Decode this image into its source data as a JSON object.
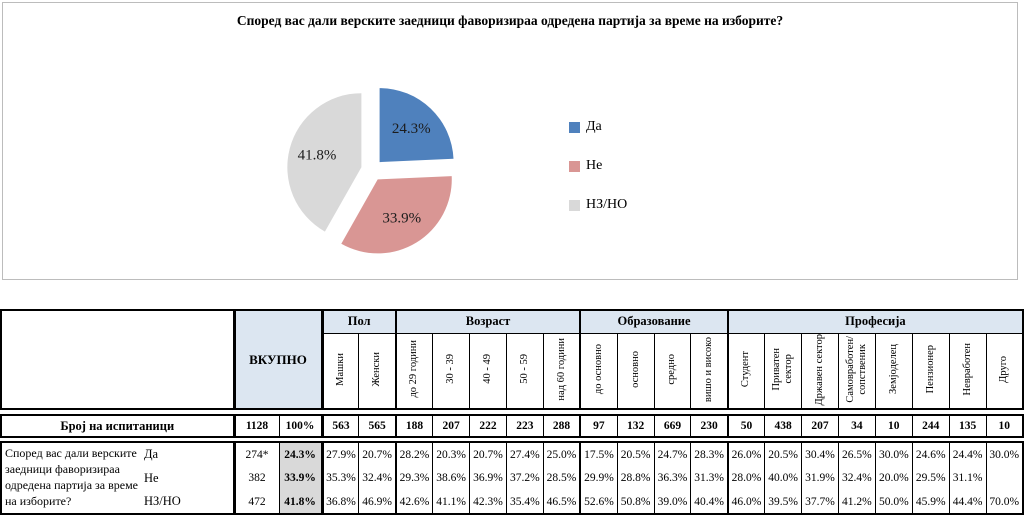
{
  "chart_data": {
    "type": "pie",
    "title": "Според вас дали верските заедници фаворизираа одредена партија за време на изборите?",
    "labels": [
      "Да",
      "Не",
      "НЗ/НО"
    ],
    "values": [
      24.3,
      33.9,
      41.8
    ],
    "value_labels": [
      "24.3%",
      "33.9%",
      "41.8%"
    ],
    "colors": [
      "#4F81BD",
      "#D99694",
      "#D9D9D9"
    ],
    "legend_position": "right",
    "exploded": true,
    "start_angle_deg": -90,
    "direction": "clockwise"
  },
  "table": {
    "corner_label": "",
    "total_header": "ВКУПНО",
    "groups": [
      {
        "label": "Пол",
        "cols": [
          "Машки",
          "Женски"
        ]
      },
      {
        "label": "Возраст",
        "cols": [
          "до 29 години",
          "30 - 39",
          "40 - 49",
          "50 - 59",
          "над 60 години"
        ]
      },
      {
        "label": "Образование",
        "cols": [
          "до основно",
          "основно",
          "средно",
          "вишо и високо"
        ]
      },
      {
        "label": "Професија",
        "cols": [
          "Студент",
          "Приватен\nсектор",
          "Државен сектор",
          "Самовработен/\nсопственик",
          "Земјоделец",
          "Пензионер",
          "Невработен",
          "Друго"
        ]
      }
    ],
    "respondents_row": {
      "label": "Број на испитаници",
      "count": "1128",
      "pct": "100%",
      "values": [
        "563",
        "565",
        "188",
        "207",
        "222",
        "223",
        "288",
        "97",
        "132",
        "669",
        "230",
        "50",
        "438",
        "207",
        "34",
        "10",
        "244",
        "135",
        "10"
      ]
    },
    "question": "Според вас дали верските заедници фаворизираа одредена партија за време на изборите?",
    "answer_rows": [
      {
        "label": "Да",
        "count": "274*",
        "pct": "24.3%",
        "values": [
          "27.9%",
          "20.7%",
          "28.2%",
          "20.3%",
          "20.7%",
          "27.4%",
          "25.0%",
          "17.5%",
          "20.5%",
          "24.7%",
          "28.3%",
          "26.0%",
          "20.5%",
          "30.4%",
          "26.5%",
          "30.0%",
          "24.6%",
          "24.4%",
          "30.0%"
        ]
      },
      {
        "label": "Не",
        "count": "382",
        "pct": "33.9%",
        "values": [
          "35.3%",
          "32.4%",
          "29.3%",
          "38.6%",
          "36.9%",
          "37.2%",
          "28.5%",
          "29.9%",
          "28.8%",
          "36.3%",
          "31.3%",
          "28.0%",
          "40.0%",
          "31.9%",
          "32.4%",
          "20.0%",
          "29.5%",
          "31.1%",
          ""
        ]
      },
      {
        "label": "НЗ/НО",
        "count": "472",
        "pct": "41.8%",
        "values": [
          "36.8%",
          "46.9%",
          "42.6%",
          "41.1%",
          "42.3%",
          "35.4%",
          "46.5%",
          "52.6%",
          "50.8%",
          "39.0%",
          "40.4%",
          "46.0%",
          "39.5%",
          "37.7%",
          "41.2%",
          "50.0%",
          "45.9%",
          "44.4%",
          "70.0%"
        ]
      }
    ],
    "styles": {
      "group_header_bg": "#DCE6F1",
      "total_bg": "#DCE6F1",
      "pct_col_bg": "#D9D9D9",
      "border_color": "#000000"
    }
  }
}
